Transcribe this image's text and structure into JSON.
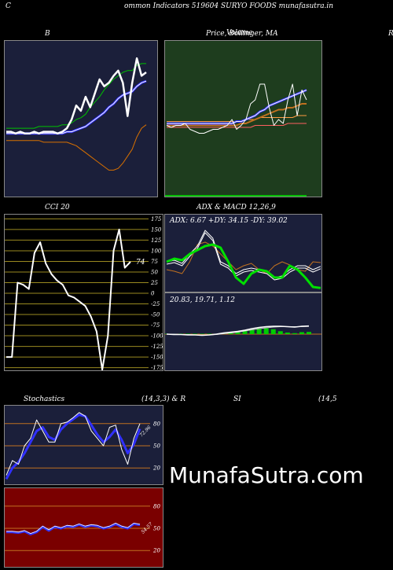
{
  "header": {
    "left_letter": "C",
    "title": "ommon  Indicators 519604  SURYO FOODS munafasutra.in"
  },
  "labels": {
    "bollinger": "B",
    "price_ma": "Price,  Bollinger,  MA",
    "price_ma_overlap": "Volume",
    "right_edge": "R",
    "cci": "CCI 20",
    "adx_macd": "ADX  & MACD 12,26,9",
    "adx_readout": "ADX: 6.67 +DY: 34.15 -DY: 39.02",
    "macd_readout": "20.83,  19.71,  1.12",
    "stochastics": "Stochastics",
    "stoch_params": "(14,3,3) & R",
    "rsi": "SI",
    "rsi_params": "(14,5",
    "cci_value": "74",
    "stoch_value": "72.96",
    "rsi_value": "54.57"
  },
  "watermark": "MunafaSutra.com",
  "colors": {
    "navy_panel": "#1b1f3a",
    "green_panel": "#1e3d1e",
    "dark_red_panel": "#7a0000",
    "upper_band": "#00c000",
    "lower_band": "#d87000",
    "blue_line": "#3030ff",
    "adx_line": "#00e000",
    "macd_hist": "#00cc00",
    "grid_orange": "#c07020",
    "grid_olive": "#9a8a20"
  },
  "chart_data": [
    {
      "type": "line",
      "name": "Bollinger Bands",
      "series": [
        {
          "role": "price",
          "values": [
            58,
            58,
            57,
            58,
            57,
            57,
            58,
            57,
            58,
            58,
            58,
            57,
            58,
            60,
            65,
            73,
            70,
            78,
            72,
            80,
            88,
            84,
            86,
            90,
            93,
            86,
            67,
            86,
            100,
            90,
            92
          ]
        },
        {
          "role": "upper",
          "values": [
            60,
            60,
            60,
            60,
            60,
            60,
            60,
            61,
            61,
            61,
            61,
            61,
            62,
            62,
            63,
            65,
            66,
            68,
            72,
            75,
            78,
            82,
            85,
            88,
            90,
            92,
            93,
            93,
            96,
            97,
            97
          ]
        },
        {
          "role": "middle",
          "values": [
            57,
            57,
            57,
            57,
            57,
            57,
            57,
            57,
            57,
            57,
            57,
            57,
            57,
            58,
            58,
            59,
            60,
            61,
            63,
            65,
            67,
            69,
            72,
            74,
            77,
            79,
            80,
            81,
            84,
            86,
            87
          ]
        },
        {
          "role": "lower",
          "values": [
            53,
            53,
            53,
            53,
            53,
            53,
            53,
            53,
            52,
            52,
            52,
            52,
            52,
            52,
            51,
            50,
            48,
            46,
            44,
            42,
            40,
            38,
            36,
            36,
            37,
            40,
            44,
            48,
            55,
            60,
            62
          ]
        }
      ]
    },
    {
      "type": "line",
      "name": "Price, Bollinger, MA",
      "series": [
        {
          "role": "price",
          "values": [
            57,
            56,
            57,
            57,
            58,
            55,
            54,
            53,
            53,
            54,
            55,
            55,
            56,
            57,
            60,
            55,
            57,
            60,
            68,
            70,
            78,
            78,
            66,
            57,
            60,
            58,
            70,
            78,
            62,
            75,
            70
          ]
        },
        {
          "role": "ma_short",
          "values": [
            58,
            58,
            58,
            58,
            58,
            58,
            58,
            58,
            58,
            58,
            58,
            58,
            58,
            58,
            58,
            59,
            59,
            60,
            61,
            62,
            64,
            65,
            67,
            68,
            69,
            70,
            71,
            72,
            73,
            74,
            75
          ]
        },
        {
          "role": "ma_long",
          "values": [
            57,
            57,
            57,
            57,
            57,
            57,
            57,
            57,
            57,
            57,
            57,
            57,
            57,
            57,
            57,
            57,
            58,
            58,
            59,
            60,
            61,
            62,
            63,
            64,
            65,
            65,
            66,
            66,
            67,
            68,
            68
          ]
        },
        {
          "role": "upper",
          "values": [
            59,
            59,
            59,
            59,
            59,
            59,
            59,
            59,
            59,
            59,
            59,
            59,
            59,
            59,
            59,
            59,
            59,
            60,
            60,
            60,
            61,
            61,
            61,
            61,
            61,
            61,
            61,
            61,
            62,
            62,
            62
          ]
        },
        {
          "role": "lower",
          "values": [
            56,
            56,
            56,
            56,
            56,
            56,
            56,
            56,
            56,
            56,
            56,
            56,
            56,
            56,
            56,
            56,
            56,
            56,
            56,
            57,
            57,
            57,
            57,
            57,
            57,
            57,
            58,
            58,
            58,
            58,
            58
          ]
        }
      ]
    },
    {
      "type": "line",
      "name": "CCI 20",
      "yticks": [
        175,
        150,
        125,
        100,
        75,
        50,
        25,
        0,
        -25,
        -50,
        -75,
        -100,
        -125,
        -150,
        -175
      ],
      "ylim": [
        -185,
        185
      ],
      "series": [
        {
          "role": "cci",
          "values": [
            -150,
            -150,
            25,
            20,
            10,
            95,
            120,
            70,
            45,
            30,
            20,
            -5,
            -10,
            -20,
            -30,
            -55,
            -90,
            -180,
            -100,
            100,
            150,
            60,
            74
          ]
        }
      ]
    },
    {
      "type": "line",
      "name": "ADX & MACD 12,26,9",
      "series": [
        {
          "role": "adx",
          "values": [
            40,
            44,
            42,
            50,
            55,
            60,
            62,
            58,
            40,
            20,
            12,
            25,
            30,
            28,
            20,
            20,
            35,
            30,
            20,
            8,
            6.67
          ]
        },
        {
          "role": "plus_di",
          "values": [
            40,
            42,
            38,
            50,
            60,
            80,
            70,
            40,
            35,
            25,
            30,
            32,
            30,
            28,
            20,
            22,
            30,
            35,
            35,
            30,
            34.15
          ]
        },
        {
          "role": "minus_di",
          "values": [
            30,
            28,
            25,
            40,
            62,
            65,
            60,
            50,
            40,
            30,
            35,
            38,
            30,
            25,
            35,
            40,
            36,
            30,
            28,
            40,
            39.02
          ]
        },
        {
          "role": "macd",
          "values": [
            0,
            -1,
            -1,
            -2,
            -2,
            -3,
            -2,
            0,
            3,
            5,
            7,
            10,
            14,
            17,
            19,
            20,
            20,
            19,
            18,
            20,
            20.83
          ]
        },
        {
          "role": "signal",
          "values": [
            0,
            0,
            -1,
            -1,
            -2,
            -2,
            -2,
            -1,
            1,
            3,
            5,
            8,
            11,
            14,
            16,
            18,
            19,
            19,
            19,
            19,
            19.71
          ]
        },
        {
          "role": "histogram",
          "values": [
            0,
            0,
            0,
            0,
            0,
            0,
            0,
            0,
            0.5,
            1,
            1.5,
            2,
            2.5,
            3,
            3,
            2.5,
            1.5,
            0.8,
            0.5,
            1,
            1.12
          ]
        }
      ]
    },
    {
      "type": "line",
      "name": "Stochastics (14,3,3)",
      "yticks": [
        80,
        50,
        20
      ],
      "ylim": [
        0,
        100
      ],
      "series": [
        {
          "role": "k",
          "values": [
            10,
            30,
            25,
            50,
            60,
            85,
            70,
            55,
            55,
            80,
            82,
            88,
            95,
            90,
            70,
            60,
            50,
            75,
            78,
            45,
            25,
            60,
            80
          ]
        },
        {
          "role": "d",
          "values": [
            5,
            20,
            28,
            40,
            55,
            70,
            75,
            62,
            58,
            72,
            80,
            86,
            92,
            90,
            78,
            65,
            55,
            62,
            72,
            58,
            40,
            52,
            72.96
          ]
        }
      ]
    },
    {
      "type": "line",
      "name": "RSI (14,5)",
      "yticks": [
        80,
        50,
        20
      ],
      "ylim": [
        0,
        100
      ],
      "series": [
        {
          "role": "rsi",
          "values": [
            45,
            45,
            44,
            46,
            42,
            45,
            52,
            47,
            52,
            50,
            53,
            52,
            55,
            52,
            54,
            53,
            50,
            52,
            56,
            52,
            50,
            56,
            54.57
          ]
        }
      ]
    }
  ]
}
